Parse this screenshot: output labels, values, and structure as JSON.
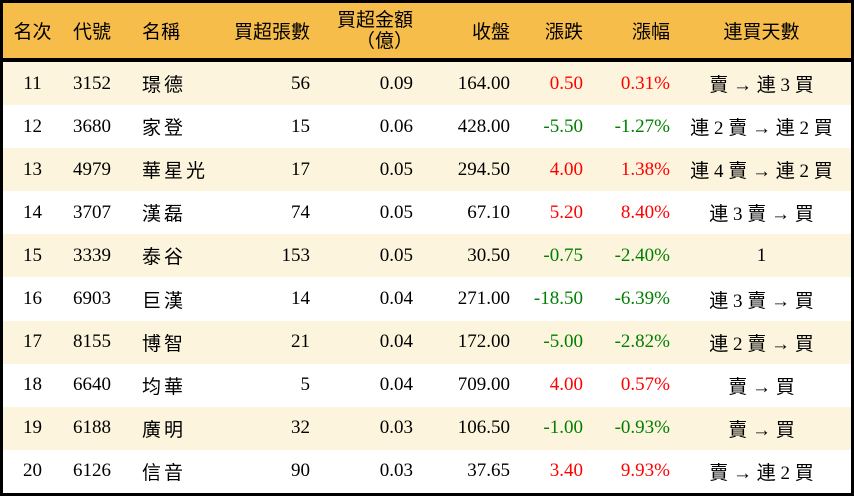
{
  "colors": {
    "header_bg": "#f7bd4b",
    "row_alt_bg": "#fcf4dd",
    "row_bg": "#ffffff",
    "positive": "#ff0000",
    "negative": "#008000",
    "border": "#000000",
    "text": "#000000"
  },
  "table": {
    "columns": [
      {
        "label": "名次"
      },
      {
        "label": "代號"
      },
      {
        "label": "名稱"
      },
      {
        "label": "買超張數"
      },
      {
        "label": "買超金額",
        "label2": "（億）"
      },
      {
        "label": "收盤"
      },
      {
        "label": "漲跌"
      },
      {
        "label": "漲幅"
      },
      {
        "label": "連買天數"
      }
    ],
    "rows": [
      {
        "rank": "11",
        "code": "3152",
        "name": "璟德",
        "buy_volume": "56",
        "buy_amount": "0.09",
        "close": "164.00",
        "change": "0.50",
        "change_pct": "0.31%",
        "streak": "賣 → 連 3 買",
        "direction": "up"
      },
      {
        "rank": "12",
        "code": "3680",
        "name": "家登",
        "buy_volume": "15",
        "buy_amount": "0.06",
        "close": "428.00",
        "change": "-5.50",
        "change_pct": "-1.27%",
        "streak": "連 2 賣 → 連 2 買",
        "direction": "down"
      },
      {
        "rank": "13",
        "code": "4979",
        "name": "華星光",
        "buy_volume": "17",
        "buy_amount": "0.05",
        "close": "294.50",
        "change": "4.00",
        "change_pct": "1.38%",
        "streak": "連 4 賣 → 連 2 買",
        "direction": "up"
      },
      {
        "rank": "14",
        "code": "3707",
        "name": "漢磊",
        "buy_volume": "74",
        "buy_amount": "0.05",
        "close": "67.10",
        "change": "5.20",
        "change_pct": "8.40%",
        "streak": "連 3 賣 → 買",
        "direction": "up"
      },
      {
        "rank": "15",
        "code": "3339",
        "name": "泰谷",
        "buy_volume": "153",
        "buy_amount": "0.05",
        "close": "30.50",
        "change": "-0.75",
        "change_pct": "-2.40%",
        "streak": "1",
        "direction": "down"
      },
      {
        "rank": "16",
        "code": "6903",
        "name": "巨漢",
        "buy_volume": "14",
        "buy_amount": "0.04",
        "close": "271.00",
        "change": "-18.50",
        "change_pct": "-6.39%",
        "streak": "連 3 賣 → 買",
        "direction": "down"
      },
      {
        "rank": "17",
        "code": "8155",
        "name": "博智",
        "buy_volume": "21",
        "buy_amount": "0.04",
        "close": "172.00",
        "change": "-5.00",
        "change_pct": "-2.82%",
        "streak": "連 2 賣 → 買",
        "direction": "down"
      },
      {
        "rank": "18",
        "code": "6640",
        "name": "均華",
        "buy_volume": "5",
        "buy_amount": "0.04",
        "close": "709.00",
        "change": "4.00",
        "change_pct": "0.57%",
        "streak": "賣 → 買",
        "direction": "up"
      },
      {
        "rank": "19",
        "code": "6188",
        "name": "廣明",
        "buy_volume": "32",
        "buy_amount": "0.03",
        "close": "106.50",
        "change": "-1.00",
        "change_pct": "-0.93%",
        "streak": "賣 → 買",
        "direction": "down"
      },
      {
        "rank": "20",
        "code": "6126",
        "name": "信音",
        "buy_volume": "90",
        "buy_amount": "0.03",
        "close": "37.65",
        "change": "3.40",
        "change_pct": "9.93%",
        "streak": "賣 → 連 2 買",
        "direction": "up"
      }
    ]
  },
  "chart_data": {
    "type": "table",
    "title": "",
    "columns": [
      "名次",
      "代號",
      "名稱",
      "買超張數",
      "買超金額（億）",
      "收盤",
      "漲跌",
      "漲幅",
      "連買天數"
    ],
    "rows": [
      [
        11,
        "3152",
        "璟德",
        56,
        0.09,
        164.0,
        0.5,
        0.31,
        "賣 → 連 3 買"
      ],
      [
        12,
        "3680",
        "家登",
        15,
        0.06,
        428.0,
        -5.5,
        -1.27,
        "連 2 賣 → 連 2 買"
      ],
      [
        13,
        "4979",
        "華星光",
        17,
        0.05,
        294.5,
        4.0,
        1.38,
        "連 4 賣 → 連 2 買"
      ],
      [
        14,
        "3707",
        "漢磊",
        74,
        0.05,
        67.1,
        5.2,
        8.4,
        "連 3 賣 → 買"
      ],
      [
        15,
        "3339",
        "泰谷",
        153,
        0.05,
        30.5,
        -0.75,
        -2.4,
        "1"
      ],
      [
        16,
        "6903",
        "巨漢",
        14,
        0.04,
        271.0,
        -18.5,
        -6.39,
        "連 3 賣 → 買"
      ],
      [
        17,
        "8155",
        "博智",
        21,
        0.04,
        172.0,
        -5.0,
        -2.82,
        "連 2 賣 → 買"
      ],
      [
        18,
        "6640",
        "均華",
        5,
        0.04,
        709.0,
        4.0,
        0.57,
        "賣 → 買"
      ],
      [
        19,
        "6188",
        "廣明",
        32,
        0.03,
        106.5,
        -1.0,
        -0.93,
        "賣 → 買"
      ],
      [
        20,
        "6126",
        "信音",
        90,
        0.03,
        37.65,
        3.4,
        9.93,
        "賣 → 連 2 買"
      ]
    ],
    "layout_hints": {
      "change_pct_unit": "%",
      "positive_color": "#ff0000",
      "negative_color": "#008000",
      "row_striping": "odd rows cream #fcf4dd, even rows white",
      "header_bg": "#f7bd4b"
    }
  }
}
